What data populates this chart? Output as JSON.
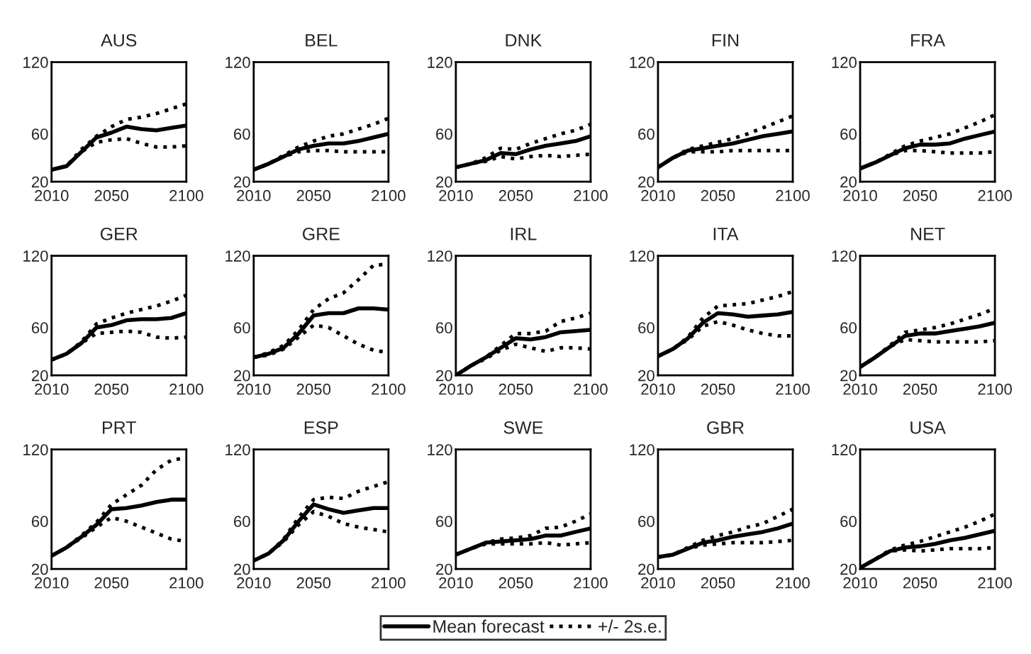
{
  "chart_data": [
    {
      "type": "line",
      "title": "AUS",
      "x": [
        2010,
        2020,
        2030,
        2040,
        2050,
        2060,
        2070,
        2080,
        2090,
        2100
      ],
      "xlim": [
        2010,
        2100
      ],
      "ylim": [
        20,
        120
      ],
      "xticks": [
        2010,
        2050,
        2100
      ],
      "yticks": [
        20,
        60,
        120
      ],
      "series": [
        {
          "color": "#000000",
          "line_style": "solid",
          "values": [
            30,
            33,
            45,
            57,
            61,
            66,
            64,
            63,
            65,
            67
          ]
        },
        {
          "color": "#000000",
          "line_style": "dotted",
          "values": [
            30,
            33,
            47,
            58,
            66,
            72,
            74,
            77,
            81,
            85
          ]
        },
        {
          "color": "#000000",
          "line_style": "dotted",
          "values": [
            30,
            33,
            45,
            53,
            55,
            56,
            52,
            49,
            49,
            50
          ]
        }
      ]
    },
    {
      "type": "line",
      "title": "BEL",
      "x": [
        2010,
        2020,
        2030,
        2040,
        2050,
        2060,
        2070,
        2080,
        2090,
        2100
      ],
      "xlim": [
        2010,
        2100
      ],
      "ylim": [
        20,
        120
      ],
      "xticks": [
        2010,
        2050,
        2100
      ],
      "yticks": [
        20,
        60,
        120
      ],
      "series": [
        {
          "color": "#000000",
          "line_style": "solid",
          "values": [
            30,
            35,
            41,
            47,
            50,
            52,
            52,
            54,
            57,
            60
          ]
        },
        {
          "color": "#000000",
          "line_style": "dotted",
          "values": [
            30,
            35,
            42,
            49,
            54,
            58,
            60,
            64,
            68,
            73
          ]
        },
        {
          "color": "#000000",
          "line_style": "dotted",
          "values": [
            30,
            35,
            41,
            45,
            46,
            46,
            45,
            45,
            45,
            45
          ]
        }
      ]
    },
    {
      "type": "line",
      "title": "DNK",
      "x": [
        2010,
        2020,
        2030,
        2040,
        2050,
        2060,
        2070,
        2080,
        2090,
        2100
      ],
      "xlim": [
        2010,
        2100
      ],
      "ylim": [
        20,
        120
      ],
      "xticks": [
        2010,
        2050,
        2100
      ],
      "yticks": [
        20,
        60,
        120
      ],
      "series": [
        {
          "color": "#000000",
          "line_style": "solid",
          "values": [
            32,
            35,
            38,
            44,
            43,
            47,
            50,
            52,
            54,
            58
          ]
        },
        {
          "color": "#000000",
          "line_style": "dotted",
          "values": [
            32,
            35,
            40,
            48,
            47,
            52,
            56,
            60,
            63,
            68
          ]
        },
        {
          "color": "#000000",
          "line_style": "dotted",
          "values": [
            32,
            35,
            37,
            41,
            39,
            41,
            42,
            41,
            42,
            43
          ]
        }
      ]
    },
    {
      "type": "line",
      "title": "FIN",
      "x": [
        2010,
        2020,
        2030,
        2040,
        2050,
        2060,
        2070,
        2080,
        2090,
        2100
      ],
      "xlim": [
        2010,
        2100
      ],
      "ylim": [
        20,
        120
      ],
      "xticks": [
        2010,
        2050,
        2100
      ],
      "yticks": [
        20,
        60,
        120
      ],
      "series": [
        {
          "color": "#000000",
          "line_style": "solid",
          "values": [
            32,
            40,
            46,
            48,
            50,
            52,
            55,
            58,
            60,
            62
          ]
        },
        {
          "color": "#000000",
          "line_style": "dotted",
          "values": [
            32,
            40,
            47,
            50,
            53,
            56,
            60,
            65,
            70,
            75
          ]
        },
        {
          "color": "#000000",
          "line_style": "dotted",
          "values": [
            32,
            40,
            45,
            45,
            45,
            46,
            46,
            46,
            46,
            46
          ]
        }
      ]
    },
    {
      "type": "line",
      "title": "FRA",
      "x": [
        2010,
        2020,
        2030,
        2040,
        2050,
        2060,
        2070,
        2080,
        2090,
        2100
      ],
      "xlim": [
        2010,
        2100
      ],
      "ylim": [
        20,
        120
      ],
      "xticks": [
        2010,
        2050,
        2100
      ],
      "yticks": [
        20,
        60,
        120
      ],
      "series": [
        {
          "color": "#000000",
          "line_style": "solid",
          "values": [
            31,
            36,
            42,
            48,
            51,
            51,
            52,
            56,
            59,
            62
          ]
        },
        {
          "color": "#000000",
          "line_style": "dotted",
          "values": [
            31,
            36,
            43,
            50,
            54,
            57,
            60,
            65,
            70,
            76
          ]
        },
        {
          "color": "#000000",
          "line_style": "dotted",
          "values": [
            31,
            36,
            42,
            46,
            46,
            45,
            44,
            44,
            44,
            45
          ]
        }
      ]
    },
    {
      "type": "line",
      "title": "GER",
      "x": [
        2010,
        2020,
        2030,
        2040,
        2050,
        2060,
        2070,
        2080,
        2090,
        2100
      ],
      "xlim": [
        2010,
        2100
      ],
      "ylim": [
        20,
        120
      ],
      "xticks": [
        2010,
        2050,
        2100
      ],
      "yticks": [
        20,
        60,
        120
      ],
      "series": [
        {
          "color": "#000000",
          "line_style": "solid",
          "values": [
            33,
            38,
            47,
            60,
            62,
            66,
            67,
            67,
            68,
            72
          ]
        },
        {
          "color": "#000000",
          "line_style": "dotted",
          "values": [
            33,
            38,
            48,
            63,
            68,
            72,
            75,
            78,
            82,
            87
          ]
        },
        {
          "color": "#000000",
          "line_style": "dotted",
          "values": [
            33,
            38,
            47,
            55,
            56,
            57,
            56,
            52,
            51,
            52
          ]
        }
      ]
    },
    {
      "type": "line",
      "title": "GRE",
      "x": [
        2010,
        2020,
        2030,
        2040,
        2050,
        2060,
        2070,
        2080,
        2090,
        2100
      ],
      "xlim": [
        2010,
        2100
      ],
      "ylim": [
        20,
        120
      ],
      "xticks": [
        2010,
        2050,
        2100
      ],
      "yticks": [
        20,
        60,
        120
      ],
      "series": [
        {
          "color": "#000000",
          "line_style": "solid",
          "values": [
            35,
            38,
            43,
            55,
            70,
            72,
            72,
            76,
            76,
            75
          ]
        },
        {
          "color": "#000000",
          "line_style": "dotted",
          "values": [
            35,
            39,
            45,
            58,
            75,
            84,
            89,
            100,
            112,
            113
          ]
        },
        {
          "color": "#000000",
          "line_style": "dotted",
          "values": [
            35,
            37,
            42,
            52,
            62,
            60,
            53,
            46,
            41,
            39
          ]
        }
      ]
    },
    {
      "type": "line",
      "title": "IRL",
      "x": [
        2010,
        2020,
        2030,
        2040,
        2050,
        2060,
        2070,
        2080,
        2090,
        2100
      ],
      "xlim": [
        2010,
        2100
      ],
      "ylim": [
        20,
        120
      ],
      "xticks": [
        2010,
        2050,
        2100
      ],
      "yticks": [
        20,
        60,
        120
      ],
      "series": [
        {
          "color": "#000000",
          "line_style": "solid",
          "values": [
            20,
            28,
            35,
            43,
            51,
            50,
            52,
            56,
            57,
            58
          ]
        },
        {
          "color": "#000000",
          "line_style": "dotted",
          "values": [
            20,
            28,
            35,
            45,
            55,
            55,
            57,
            65,
            68,
            72
          ]
        },
        {
          "color": "#000000",
          "line_style": "dotted",
          "values": [
            20,
            28,
            34,
            41,
            46,
            43,
            40,
            43,
            43,
            42
          ]
        }
      ]
    },
    {
      "type": "line",
      "title": "ITA",
      "x": [
        2010,
        2020,
        2030,
        2040,
        2050,
        2060,
        2070,
        2080,
        2090,
        2100
      ],
      "xlim": [
        2010,
        2100
      ],
      "ylim": [
        20,
        120
      ],
      "xticks": [
        2010,
        2050,
        2100
      ],
      "yticks": [
        20,
        60,
        120
      ],
      "series": [
        {
          "color": "#000000",
          "line_style": "solid",
          "values": [
            36,
            42,
            51,
            64,
            72,
            71,
            69,
            70,
            71,
            73
          ]
        },
        {
          "color": "#000000",
          "line_style": "dotted",
          "values": [
            36,
            42,
            52,
            68,
            78,
            79,
            80,
            83,
            86,
            90
          ]
        },
        {
          "color": "#000000",
          "line_style": "dotted",
          "values": [
            36,
            42,
            50,
            61,
            65,
            62,
            58,
            55,
            53,
            53
          ]
        }
      ]
    },
    {
      "type": "line",
      "title": "NET",
      "x": [
        2010,
        2020,
        2030,
        2040,
        2050,
        2060,
        2070,
        2080,
        2090,
        2100
      ],
      "xlim": [
        2010,
        2100
      ],
      "ylim": [
        20,
        120
      ],
      "xticks": [
        2010,
        2050,
        2100
      ],
      "yticks": [
        20,
        60,
        120
      ],
      "series": [
        {
          "color": "#000000",
          "line_style": "solid",
          "values": [
            27,
            35,
            44,
            53,
            55,
            55,
            57,
            59,
            61,
            64
          ]
        },
        {
          "color": "#000000",
          "line_style": "dotted",
          "values": [
            27,
            35,
            45,
            56,
            58,
            60,
            63,
            67,
            71,
            76
          ]
        },
        {
          "color": "#000000",
          "line_style": "dotted",
          "values": [
            27,
            35,
            44,
            50,
            49,
            48,
            48,
            48,
            48,
            49
          ]
        }
      ]
    },
    {
      "type": "line",
      "title": "PRT",
      "x": [
        2010,
        2020,
        2030,
        2040,
        2050,
        2060,
        2070,
        2080,
        2090,
        2100
      ],
      "xlim": [
        2010,
        2100
      ],
      "ylim": [
        20,
        120
      ],
      "xticks": [
        2010,
        2050,
        2100
      ],
      "yticks": [
        20,
        60,
        120
      ],
      "series": [
        {
          "color": "#000000",
          "line_style": "solid",
          "values": [
            31,
            38,
            47,
            57,
            70,
            71,
            73,
            76,
            78,
            78
          ]
        },
        {
          "color": "#000000",
          "line_style": "dotted",
          "values": [
            31,
            38,
            48,
            59,
            74,
            82,
            90,
            103,
            111,
            113
          ]
        },
        {
          "color": "#000000",
          "line_style": "dotted",
          "values": [
            31,
            38,
            46,
            55,
            63,
            60,
            55,
            50,
            45,
            43
          ]
        }
      ]
    },
    {
      "type": "line",
      "title": "ESP",
      "x": [
        2010,
        2020,
        2030,
        2040,
        2050,
        2060,
        2070,
        2080,
        2090,
        2100
      ],
      "xlim": [
        2010,
        2100
      ],
      "ylim": [
        20,
        120
      ],
      "xticks": [
        2010,
        2050,
        2100
      ],
      "yticks": [
        20,
        60,
        120
      ],
      "series": [
        {
          "color": "#000000",
          "line_style": "solid",
          "values": [
            27,
            33,
            44,
            60,
            74,
            70,
            67,
            69,
            71,
            71
          ]
        },
        {
          "color": "#000000",
          "line_style": "dotted",
          "values": [
            27,
            33,
            45,
            63,
            78,
            80,
            79,
            85,
            89,
            93
          ]
        },
        {
          "color": "#000000",
          "line_style": "dotted",
          "values": [
            27,
            33,
            43,
            57,
            68,
            64,
            58,
            55,
            53,
            51
          ]
        }
      ]
    },
    {
      "type": "line",
      "title": "SWE",
      "x": [
        2010,
        2020,
        2030,
        2040,
        2050,
        2060,
        2070,
        2080,
        2090,
        2100
      ],
      "xlim": [
        2010,
        2100
      ],
      "ylim": [
        20,
        120
      ],
      "xticks": [
        2010,
        2050,
        2100
      ],
      "yticks": [
        20,
        60,
        120
      ],
      "legend": "bottom",
      "series": [
        {
          "name": "Mean forecast",
          "color": "#000000",
          "line_style": "solid",
          "values": [
            32,
            37,
            42,
            43,
            44,
            45,
            48,
            48,
            51,
            54
          ]
        },
        {
          "name": "+/- 2s.e.",
          "color": "#000000",
          "line_style": "dotted",
          "values": [
            32,
            37,
            42,
            45,
            46,
            48,
            54,
            55,
            60,
            66
          ]
        },
        {
          "color": "#000000",
          "line_style": "dotted",
          "values": [
            32,
            37,
            41,
            41,
            41,
            41,
            42,
            40,
            41,
            42
          ]
        }
      ]
    },
    {
      "type": "line",
      "title": "GBR",
      "x": [
        2010,
        2020,
        2030,
        2040,
        2050,
        2060,
        2070,
        2080,
        2090,
        2100
      ],
      "xlim": [
        2010,
        2100
      ],
      "ylim": [
        20,
        120
      ],
      "xticks": [
        2010,
        2050,
        2100
      ],
      "yticks": [
        20,
        60,
        120
      ],
      "series": [
        {
          "color": "#000000",
          "line_style": "solid",
          "values": [
            30,
            32,
            37,
            42,
            44,
            47,
            49,
            51,
            54,
            58
          ]
        },
        {
          "color": "#000000",
          "line_style": "dotted",
          "values": [
            30,
            32,
            38,
            44,
            48,
            51,
            55,
            58,
            64,
            70
          ]
        },
        {
          "color": "#000000",
          "line_style": "dotted",
          "values": [
            30,
            32,
            37,
            40,
            41,
            42,
            42,
            42,
            43,
            44
          ]
        }
      ]
    },
    {
      "type": "line",
      "title": "USA",
      "x": [
        2010,
        2020,
        2030,
        2040,
        2050,
        2060,
        2070,
        2080,
        2090,
        2100
      ],
      "xlim": [
        2010,
        2100
      ],
      "ylim": [
        20,
        120
      ],
      "xticks": [
        2010,
        2050,
        2100
      ],
      "yticks": [
        20,
        60,
        120
      ],
      "series": [
        {
          "color": "#000000",
          "line_style": "solid",
          "values": [
            21,
            28,
            35,
            38,
            39,
            41,
            44,
            46,
            49,
            52
          ]
        },
        {
          "color": "#000000",
          "line_style": "dotted",
          "values": [
            21,
            28,
            36,
            40,
            43,
            47,
            51,
            55,
            60,
            66
          ]
        },
        {
          "color": "#000000",
          "line_style": "dotted",
          "values": [
            21,
            28,
            35,
            36,
            35,
            36,
            37,
            37,
            37,
            38
          ]
        }
      ]
    }
  ]
}
